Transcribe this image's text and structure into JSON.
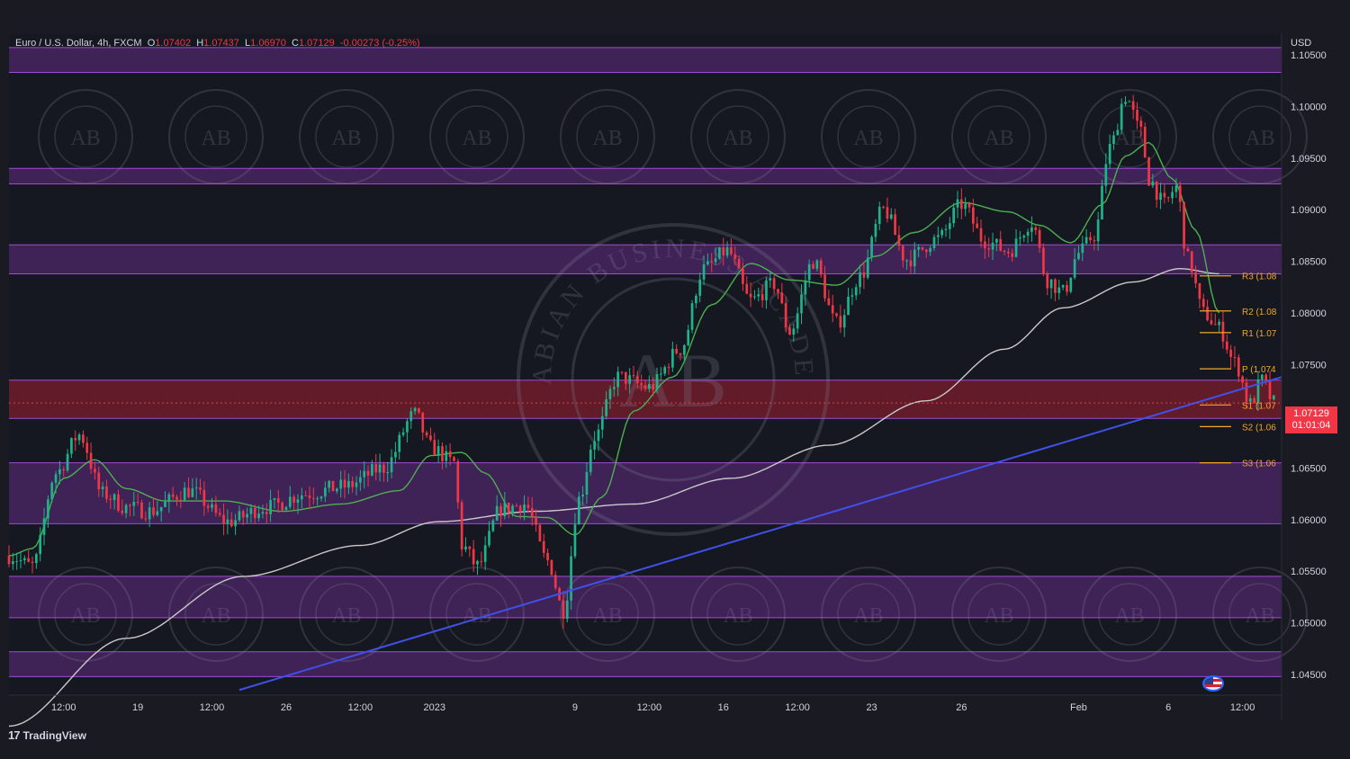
{
  "header": {
    "symbol": "Euro / U.S. Dollar, 4h, FXCM",
    "open_label": "O",
    "open": "1.07402",
    "high_label": "H",
    "high": "1.07437",
    "low_label": "L",
    "low": "1.06970",
    "close_label": "C",
    "close": "1.07129",
    "change": "-0.00273 (-0.25%)",
    "currency": "USD"
  },
  "brand": {
    "name": "TradingView",
    "mark": "17"
  },
  "watermark": {
    "text": "ARABIAN BUSINESS ACADEMY",
    "monogram": "AB"
  },
  "last_price": {
    "value": "1.07129",
    "countdown": "01:01:04",
    "color": "#f23645"
  },
  "colors": {
    "background": "#1a1b22",
    "zone_fill": "#5b2a7a",
    "zone_border": "#a04bd8",
    "red_zone_fill": "#6e1c2a",
    "trendline": "#3f51e8",
    "ma_fast": "#4caf50",
    "ma_slow": "#c9c9c9",
    "candle_up": "#1fb38a",
    "candle_down": "#f23645",
    "pivot": "#f5a623"
  },
  "chart_data": {
    "type": "candlestick",
    "y_axis": {
      "min": 1.043,
      "max": 1.107,
      "ticks": [
        1.105,
        1.1,
        1.095,
        1.09,
        1.085,
        1.08,
        1.075,
        1.07,
        1.065,
        1.06,
        1.055,
        1.05,
        1.045
      ],
      "tick_labels": [
        "1.10500",
        "1.10000",
        "1.09500",
        "1.09000",
        "1.08500",
        "1.08000",
        "1.07500",
        "1.07000",
        "1.06500",
        "1.06000",
        "1.05500",
        "1.05000",
        "1.04500"
      ]
    },
    "x_axis": {
      "range": [
        0,
        326
      ],
      "ticks": [
        {
          "label": "12:00",
          "x": 14
        },
        {
          "label": "19",
          "x": 33
        },
        {
          "label": "12:00",
          "x": 52
        },
        {
          "label": "26",
          "x": 71
        },
        {
          "label": "12:00",
          "x": 90
        },
        {
          "label": "2023",
          "x": 109
        },
        {
          "label": "9",
          "x": 145
        },
        {
          "label": "12:00",
          "x": 164
        },
        {
          "label": "16",
          "x": 183
        },
        {
          "label": "12:00",
          "x": 202
        },
        {
          "label": "23",
          "x": 221
        },
        {
          "label": "26",
          "x": 244
        },
        {
          "label": "Feb",
          "x": 274
        },
        {
          "label": "6",
          "x": 297
        },
        {
          "label": "12:00",
          "x": 316
        }
      ]
    },
    "zones": [
      {
        "from": 1.1033,
        "to": 1.1057,
        "kind": "resistance"
      },
      {
        "from": 1.0925,
        "to": 1.094,
        "kind": "resistance"
      },
      {
        "from": 1.0838,
        "to": 1.0866,
        "kind": "resistance"
      },
      {
        "from": 1.0698,
        "to": 1.0735,
        "kind": "current"
      },
      {
        "from": 1.0596,
        "to": 1.0655,
        "kind": "support"
      },
      {
        "from": 1.0505,
        "to": 1.0545,
        "kind": "support"
      },
      {
        "from": 1.0448,
        "to": 1.0472,
        "kind": "support"
      }
    ],
    "pivots": [
      {
        "label": "R3 (1.08",
        "value": 1.0836
      },
      {
        "label": "R2 (1.08",
        "value": 1.0802
      },
      {
        "label": "R1 (1.07",
        "value": 1.0781
      },
      {
        "label": "P (1.074",
        "value": 1.0746
      },
      {
        "label": "S1 (1.07",
        "value": 1.0711
      },
      {
        "label": "S2 (1.06",
        "value": 1.069
      },
      {
        "label": "S3 (1.06",
        "value": 1.0655
      }
    ],
    "trendline": [
      {
        "x": 59,
        "y": 1.0435
      },
      {
        "x": 326,
        "y": 1.0738
      }
    ],
    "current_price": 1.07129,
    "ma_slow_keypoints": [
      {
        "x": 0,
        "y": 1.04
      },
      {
        "x": 30,
        "y": 1.0485
      },
      {
        "x": 60,
        "y": 1.0545
      },
      {
        "x": 90,
        "y": 1.0575
      },
      {
        "x": 110,
        "y": 1.0598
      },
      {
        "x": 135,
        "y": 1.0608
      },
      {
        "x": 160,
        "y": 1.0615
      },
      {
        "x": 185,
        "y": 1.064
      },
      {
        "x": 210,
        "y": 1.0672
      },
      {
        "x": 235,
        "y": 1.0715
      },
      {
        "x": 255,
        "y": 1.0765
      },
      {
        "x": 270,
        "y": 1.0805
      },
      {
        "x": 288,
        "y": 1.083
      },
      {
        "x": 300,
        "y": 1.0843
      },
      {
        "x": 310,
        "y": 1.0838
      }
    ],
    "ma_fast_keypoints": [
      {
        "x": 0,
        "y": 1.0565
      },
      {
        "x": 6,
        "y": 1.0572
      },
      {
        "x": 14,
        "y": 1.064
      },
      {
        "x": 22,
        "y": 1.0658
      },
      {
        "x": 30,
        "y": 1.063
      },
      {
        "x": 40,
        "y": 1.0618
      },
      {
        "x": 55,
        "y": 1.0618
      },
      {
        "x": 70,
        "y": 1.0608
      },
      {
        "x": 85,
        "y": 1.0615
      },
      {
        "x": 100,
        "y": 1.0628
      },
      {
        "x": 108,
        "y": 1.0662
      },
      {
        "x": 116,
        "y": 1.0665
      },
      {
        "x": 122,
        "y": 1.0645
      },
      {
        "x": 130,
        "y": 1.0603
      },
      {
        "x": 138,
        "y": 1.0602
      },
      {
        "x": 145,
        "y": 1.0585
      },
      {
        "x": 152,
        "y": 1.0622
      },
      {
        "x": 160,
        "y": 1.0705
      },
      {
        "x": 170,
        "y": 1.0738
      },
      {
        "x": 180,
        "y": 1.0808
      },
      {
        "x": 190,
        "y": 1.0848
      },
      {
        "x": 200,
        "y": 1.0832
      },
      {
        "x": 212,
        "y": 1.0827
      },
      {
        "x": 222,
        "y": 1.0855
      },
      {
        "x": 232,
        "y": 1.0878
      },
      {
        "x": 244,
        "y": 1.0907
      },
      {
        "x": 256,
        "y": 1.0898
      },
      {
        "x": 264,
        "y": 1.0885
      },
      {
        "x": 272,
        "y": 1.0868
      },
      {
        "x": 280,
        "y": 1.0905
      },
      {
        "x": 286,
        "y": 1.0952
      },
      {
        "x": 292,
        "y": 1.0965
      },
      {
        "x": 298,
        "y": 1.093
      },
      {
        "x": 304,
        "y": 1.088
      },
      {
        "x": 310,
        "y": 1.08
      }
    ],
    "price_keypoints": [
      {
        "x": 0,
        "y": 1.0565
      },
      {
        "x": 6,
        "y": 1.0555
      },
      {
        "x": 12,
        "y": 1.0645
      },
      {
        "x": 18,
        "y": 1.0682
      },
      {
        "x": 24,
        "y": 1.0625
      },
      {
        "x": 30,
        "y": 1.0612
      },
      {
        "x": 36,
        "y": 1.0608
      },
      {
        "x": 46,
        "y": 1.0628
      },
      {
        "x": 56,
        "y": 1.0598
      },
      {
        "x": 66,
        "y": 1.0612
      },
      {
        "x": 76,
        "y": 1.0625
      },
      {
        "x": 86,
        "y": 1.0632
      },
      {
        "x": 96,
        "y": 1.065
      },
      {
        "x": 104,
        "y": 1.0702
      },
      {
        "x": 108,
        "y": 1.067
      },
      {
        "x": 114,
        "y": 1.0655
      },
      {
        "x": 116,
        "y": 1.0575
      },
      {
        "x": 120,
        "y": 1.0555
      },
      {
        "x": 126,
        "y": 1.061
      },
      {
        "x": 132,
        "y": 1.0615
      },
      {
        "x": 138,
        "y": 1.056
      },
      {
        "x": 142,
        "y": 1.0512
      },
      {
        "x": 146,
        "y": 1.062
      },
      {
        "x": 150,
        "y": 1.068
      },
      {
        "x": 156,
        "y": 1.0738
      },
      {
        "x": 164,
        "y": 1.0728
      },
      {
        "x": 172,
        "y": 1.0765
      },
      {
        "x": 178,
        "y": 1.0843
      },
      {
        "x": 184,
        "y": 1.086
      },
      {
        "x": 190,
        "y": 1.0812
      },
      {
        "x": 196,
        "y": 1.0828
      },
      {
        "x": 200,
        "y": 1.0782
      },
      {
        "x": 206,
        "y": 1.085
      },
      {
        "x": 212,
        "y": 1.079
      },
      {
        "x": 218,
        "y": 1.0835
      },
      {
        "x": 224,
        "y": 1.09
      },
      {
        "x": 230,
        "y": 1.0852
      },
      {
        "x": 238,
        "y": 1.0872
      },
      {
        "x": 244,
        "y": 1.0905
      },
      {
        "x": 250,
        "y": 1.087
      },
      {
        "x": 256,
        "y": 1.086
      },
      {
        "x": 262,
        "y": 1.0888
      },
      {
        "x": 266,
        "y": 1.0832
      },
      {
        "x": 270,
        "y": 1.082
      },
      {
        "x": 274,
        "y": 1.0858
      },
      {
        "x": 278,
        "y": 1.0875
      },
      {
        "x": 282,
        "y": 1.096
      },
      {
        "x": 286,
        "y": 1.101
      },
      {
        "x": 290,
        "y": 1.0975
      },
      {
        "x": 292,
        "y": 1.093
      },
      {
        "x": 296,
        "y": 1.0905
      },
      {
        "x": 299,
        "y": 1.0922
      },
      {
        "x": 302,
        "y": 1.0852
      },
      {
        "x": 306,
        "y": 1.08
      },
      {
        "x": 310,
        "y": 1.0785
      },
      {
        "x": 314,
        "y": 1.0752
      },
      {
        "x": 318,
        "y": 1.0712
      },
      {
        "x": 321,
        "y": 1.0735
      },
      {
        "x": 324,
        "y": 1.0713
      }
    ]
  }
}
